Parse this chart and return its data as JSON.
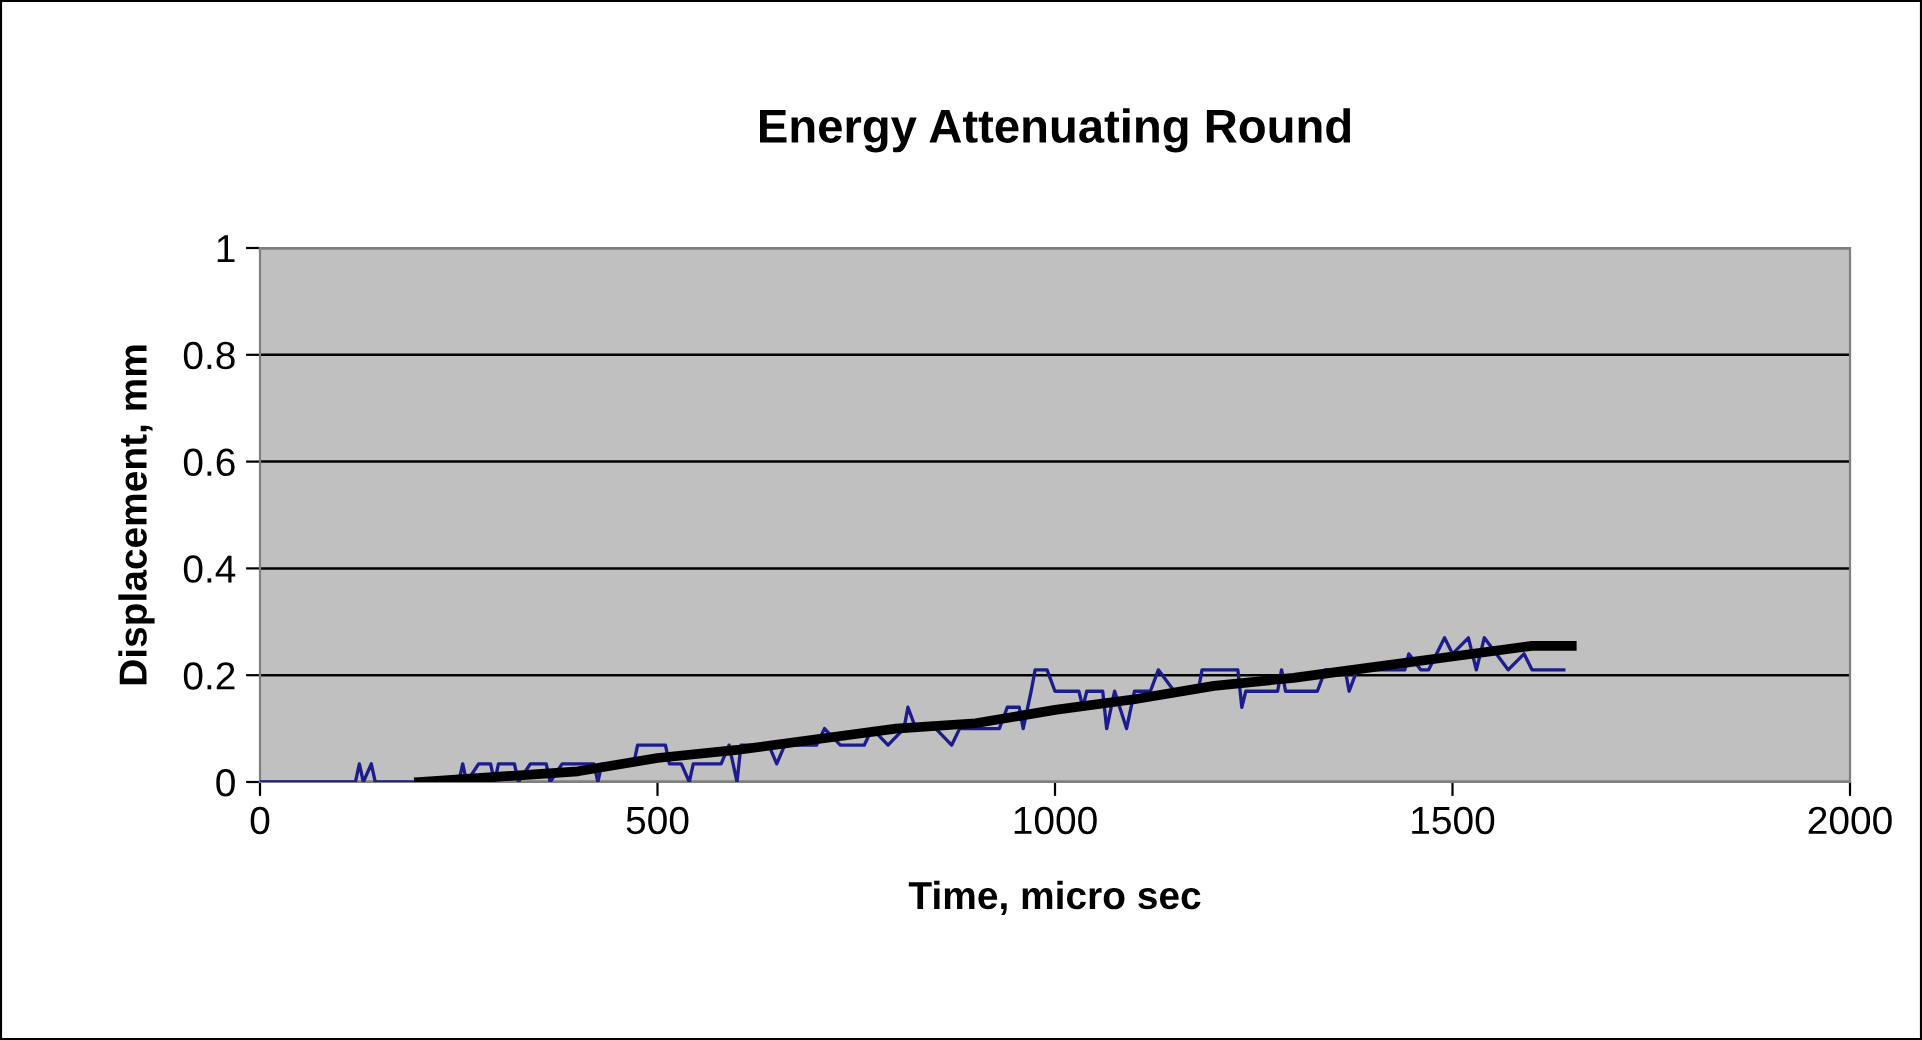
{
  "chart_data": {
    "type": "line",
    "title": "Energy Attenuating Round",
    "xlabel": "Time, micro sec",
    "ylabel": "Displacement, mm",
    "xlim": [
      0,
      2000
    ],
    "xticks": [
      0,
      500,
      1000,
      1500,
      2000
    ],
    "ylim": [
      0,
      1
    ],
    "yticks": [
      0,
      0.2,
      0.4,
      0.6,
      0.8,
      1
    ],
    "grid": "y",
    "legend": false,
    "marker": "none",
    "series": [
      {
        "color": "#1c1c8c",
        "x": [
          0,
          120,
          125,
          130,
          140,
          145,
          250,
          255,
          260,
          275,
          290,
          295,
          300,
          320,
          325,
          340,
          360,
          365,
          380,
          420,
          425,
          430,
          470,
          475,
          510,
          515,
          530,
          540,
          545,
          580,
          590,
          600,
          605,
          640,
          650,
          660,
          700,
          710,
          730,
          760,
          770,
          790,
          810,
          815,
          825,
          850,
          870,
          880,
          930,
          940,
          955,
          960,
          970,
          975,
          990,
          1000,
          1030,
          1035,
          1040,
          1060,
          1065,
          1075,
          1090,
          1100,
          1120,
          1130,
          1150,
          1180,
          1185,
          1230,
          1235,
          1240,
          1280,
          1285,
          1290,
          1330,
          1340,
          1365,
          1370,
          1380,
          1440,
          1445,
          1460,
          1470,
          1480,
          1490,
          1500,
          1520,
          1530,
          1540,
          1555,
          1570,
          1590,
          1600,
          1620,
          1640
        ],
        "values": [
          0,
          0,
          0.034,
          0,
          0.034,
          0,
          0,
          0.034,
          0,
          0.034,
          0.034,
          0,
          0.034,
          0.034,
          0,
          0.034,
          0.034,
          0,
          0.034,
          0.034,
          0,
          0.034,
          0.034,
          0.069,
          0.069,
          0.034,
          0.034,
          0,
          0.034,
          0.034,
          0.069,
          0,
          0.069,
          0.069,
          0.034,
          0.069,
          0.069,
          0.1,
          0.069,
          0.069,
          0.1,
          0.069,
          0.1,
          0.14,
          0.1,
          0.1,
          0.069,
          0.1,
          0.1,
          0.14,
          0.14,
          0.1,
          0.17,
          0.21,
          0.21,
          0.17,
          0.17,
          0.14,
          0.17,
          0.17,
          0.1,
          0.17,
          0.1,
          0.17,
          0.17,
          0.21,
          0.17,
          0.17,
          0.21,
          0.21,
          0.14,
          0.17,
          0.17,
          0.21,
          0.17,
          0.17,
          0.21,
          0.21,
          0.17,
          0.21,
          0.21,
          0.24,
          0.21,
          0.21,
          0.24,
          0.27,
          0.24,
          0.27,
          0.21,
          0.27,
          0.24,
          0.21,
          0.24,
          0.21,
          0.21,
          0.21
        ]
      },
      {
        "color": "#000000",
        "x": [
          200,
          400,
          500,
          600,
          700,
          800,
          900,
          1000,
          1100,
          1200,
          1300,
          1400,
          1500,
          1600,
          1650
        ],
        "values": [
          0,
          0.02,
          0.045,
          0.06,
          0.08,
          0.1,
          0.11,
          0.135,
          0.155,
          0.18,
          0.195,
          0.215,
          0.235,
          0.255,
          0.255
        ]
      }
    ]
  }
}
